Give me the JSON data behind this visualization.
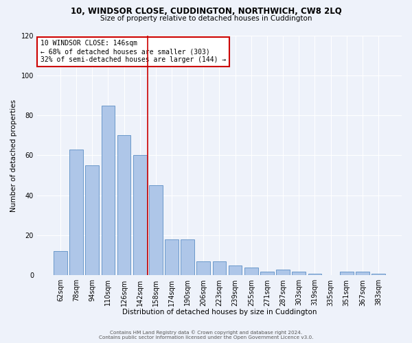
{
  "title": "10, WINDSOR CLOSE, CUDDINGTON, NORTHWICH, CW8 2LQ",
  "subtitle": "Size of property relative to detached houses in Cuddington",
  "xlabel": "Distribution of detached houses by size in Cuddington",
  "ylabel": "Number of detached properties",
  "bar_labels": [
    "62sqm",
    "78sqm",
    "94sqm",
    "110sqm",
    "126sqm",
    "142sqm",
    "158sqm",
    "174sqm",
    "190sqm",
    "206sqm",
    "223sqm",
    "239sqm",
    "255sqm",
    "271sqm",
    "287sqm",
    "303sqm",
    "319sqm",
    "335sqm",
    "351sqm",
    "367sqm",
    "383sqm"
  ],
  "bar_heights": [
    12,
    63,
    55,
    85,
    70,
    60,
    45,
    18,
    18,
    7,
    7,
    5,
    4,
    2,
    3,
    2,
    1,
    0,
    2,
    2,
    1
  ],
  "bar_color": "#aec6e8",
  "bar_edge_color": "#5b8ec4",
  "reference_line_x": 5.5,
  "annotation_title": "10 WINDSOR CLOSE: 146sqm",
  "annotation_line1": "← 68% of detached houses are smaller (303)",
  "annotation_line2": "32% of semi-detached houses are larger (144) →",
  "annotation_box_color": "#ffffff",
  "annotation_box_edge_color": "#cc0000",
  "reference_line_color": "#cc0000",
  "ylim": [
    0,
    120
  ],
  "yticks": [
    0,
    20,
    40,
    60,
    80,
    100,
    120
  ],
  "background_color": "#eef2fa",
  "footer_line1": "Contains HM Land Registry data © Crown copyright and database right 2024.",
  "footer_line2": "Contains public sector information licensed under the Open Government Licence v3.0."
}
